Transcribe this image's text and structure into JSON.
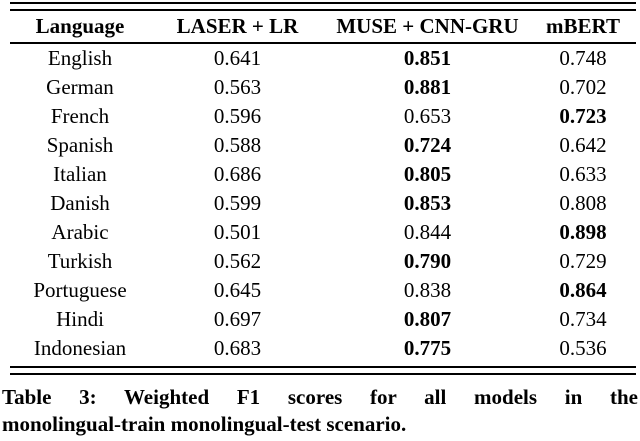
{
  "page": {
    "background_color": "#ffffff",
    "text_color": "#000000"
  },
  "table": {
    "columns": [
      {
        "label": "Language"
      },
      {
        "label": "LASER + LR"
      },
      {
        "label": "MUSE + CNN-GRU"
      },
      {
        "label": "mBERT"
      }
    ],
    "rows": [
      {
        "language": "English",
        "values": [
          "0.641",
          "0.851",
          "0.748"
        ],
        "bold_cols": [
          1
        ]
      },
      {
        "language": "German",
        "values": [
          "0.563",
          "0.881",
          "0.702"
        ],
        "bold_cols": [
          1
        ]
      },
      {
        "language": "French",
        "values": [
          "0.596",
          "0.653",
          "0.723"
        ],
        "bold_cols": [
          2
        ]
      },
      {
        "language": "Spanish",
        "values": [
          "0.588",
          "0.724",
          "0.642"
        ],
        "bold_cols": [
          1
        ]
      },
      {
        "language": "Italian",
        "values": [
          "0.686",
          "0.805",
          "0.633"
        ],
        "bold_cols": [
          1
        ]
      },
      {
        "language": "Danish",
        "values": [
          "0.599",
          "0.853",
          "0.808"
        ],
        "bold_cols": [
          1
        ]
      },
      {
        "language": "Arabic",
        "values": [
          "0.501",
          "0.844",
          "0.898"
        ],
        "bold_cols": [
          2
        ]
      },
      {
        "language": "Turkish",
        "values": [
          "0.562",
          "0.790",
          "0.729"
        ],
        "bold_cols": [
          1
        ]
      },
      {
        "language": "Portuguese",
        "values": [
          "0.645",
          "0.838",
          "0.864"
        ],
        "bold_cols": [
          2
        ]
      },
      {
        "language": "Hindi",
        "values": [
          "0.697",
          "0.807",
          "0.734"
        ],
        "bold_cols": [
          1
        ]
      },
      {
        "language": "Indonesian",
        "values": [
          "0.683",
          "0.775",
          "0.536"
        ],
        "bold_cols": [
          1
        ]
      }
    ]
  },
  "caption": {
    "line1": "Table 3: Weighted F1 scores for all models in the",
    "line2": "monolingual-train monolingual-test scenario.",
    "full_text": "Table 3: Weighted F1 scores for all models in the monolingual-train monolingual-test scenario."
  }
}
